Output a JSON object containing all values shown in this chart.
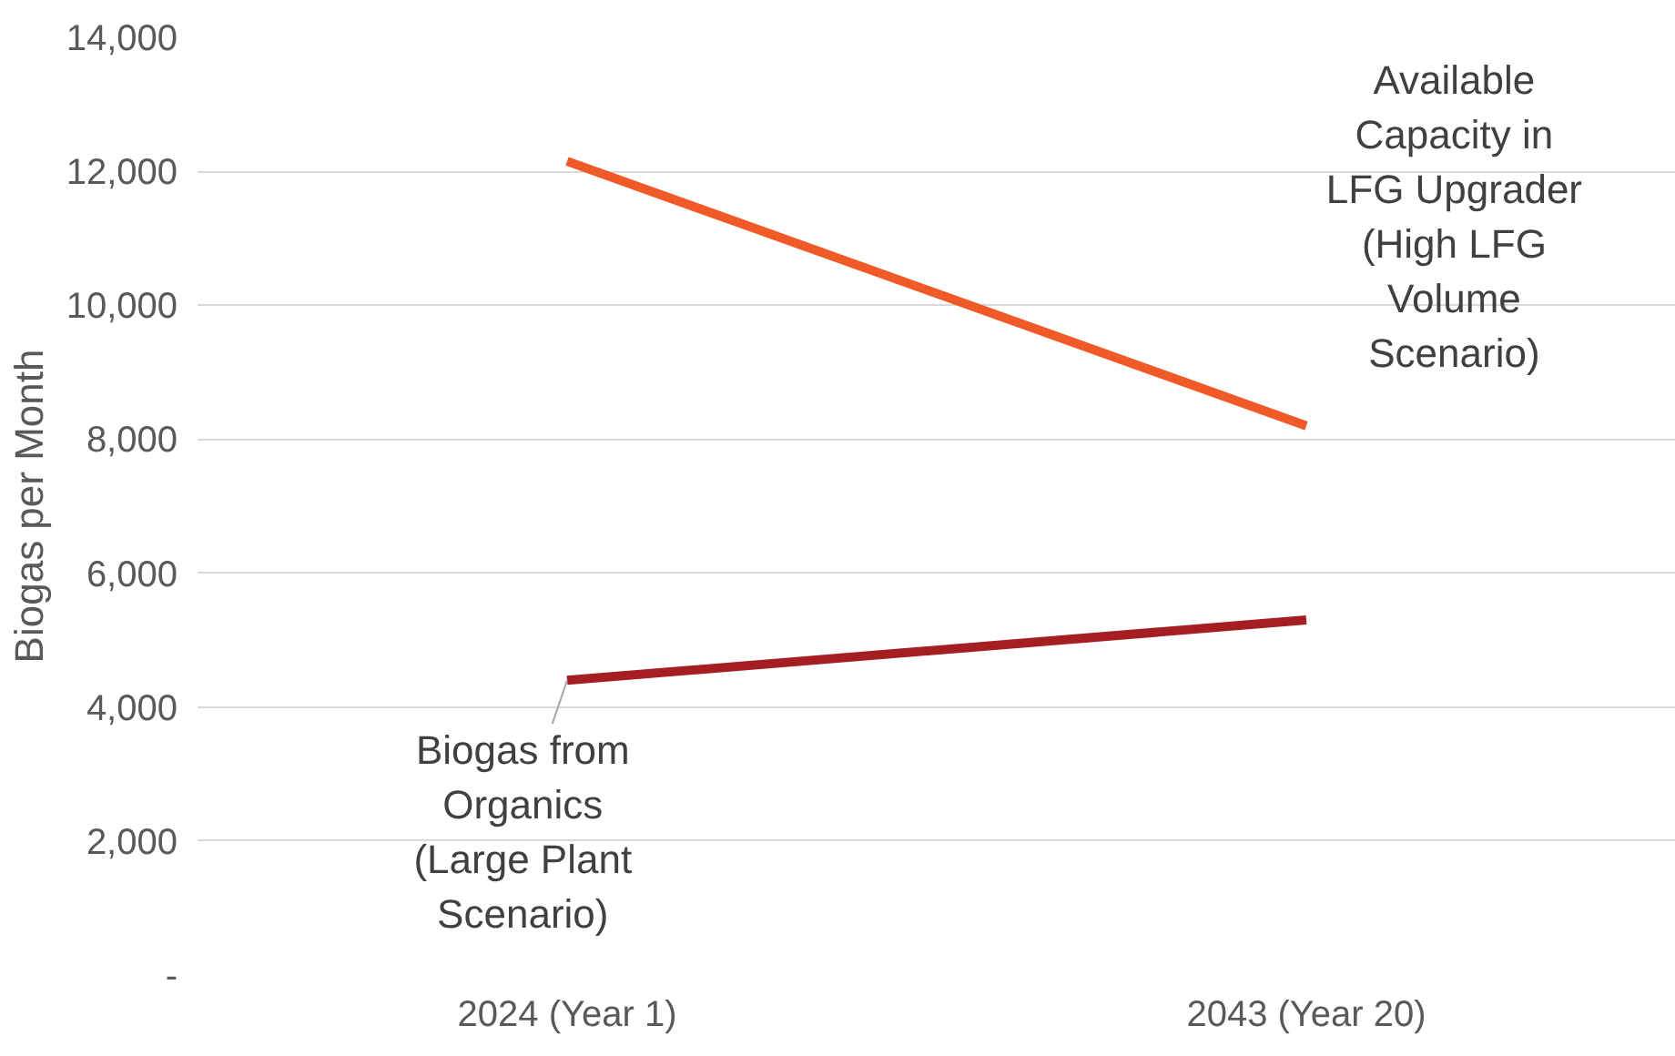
{
  "chart_data": {
    "type": "line",
    "ylabel": "Biogas per Month",
    "categories": [
      "2024 (Year 1)",
      "2043 (Year 20)"
    ],
    "series": [
      {
        "name": "Available Capacity in LFG Upgrader (High LFG Volume Scenario)",
        "color": "#f05a28",
        "values": [
          12150,
          8200
        ]
      },
      {
        "name": "Biogas from Organics (Large Plant Scenario)",
        "color": "#a51e22",
        "values": [
          4400,
          5300
        ]
      }
    ],
    "ylim": [
      0,
      14000
    ],
    "yticks": [
      {
        "value": 0,
        "label": "-"
      },
      {
        "value": 2000,
        "label": "2,000"
      },
      {
        "value": 4000,
        "label": "4,000"
      },
      {
        "value": 6000,
        "label": "6,000"
      },
      {
        "value": 8000,
        "label": "8,000"
      },
      {
        "value": 10000,
        "label": "10,000"
      },
      {
        "value": 12000,
        "label": "12,000"
      },
      {
        "value": 14000,
        "label": "14,000"
      }
    ],
    "grid": "y",
    "legend": false,
    "marker": "none",
    "line_style": "solid"
  }
}
